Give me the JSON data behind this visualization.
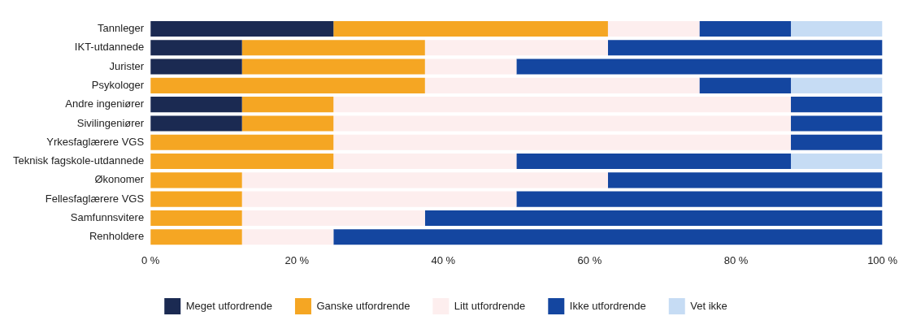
{
  "chart_data": {
    "type": "bar",
    "orientation": "horizontal",
    "stacked": true,
    "categories": [
      "Tannleger",
      "IKT-utdannede",
      "Jurister",
      "Psykologer",
      "Andre ingeniører",
      "Sivilingeniører",
      "Yrkesfaglærere VGS",
      "Teknisk fagskole-utdannede",
      "Økonomer",
      "Fellesfaglærere VGS",
      "Samfunnsvitere",
      "Renholdere"
    ],
    "series": [
      {
        "name": "Meget utfordrende",
        "color": "#1b2a52",
        "values": [
          25,
          12.5,
          12.5,
          0,
          12.5,
          12.5,
          0,
          0,
          0,
          0,
          0,
          0
        ]
      },
      {
        "name": "Ganske utfordrende",
        "color": "#f5a623",
        "values": [
          37.5,
          25,
          25,
          37.5,
          12.5,
          12.5,
          25,
          25,
          12.5,
          12.5,
          12.5,
          12.5
        ]
      },
      {
        "name": "Litt utfordrende",
        "color": "#fdeeee",
        "values": [
          12.5,
          25,
          12.5,
          37.5,
          62.5,
          62.5,
          62.5,
          25,
          50,
          37.5,
          25,
          12.5
        ]
      },
      {
        "name": "Ikke utfordrende",
        "color": "#1446a0",
        "values": [
          12.5,
          37.5,
          50,
          12.5,
          12.5,
          12.5,
          12.5,
          37.5,
          37.5,
          50,
          62.5,
          75
        ]
      },
      {
        "name": "Vet ikke",
        "color": "#c6dcf4",
        "values": [
          12.5,
          0,
          0,
          12.5,
          0,
          0,
          0,
          12.5,
          0,
          0,
          0,
          0
        ]
      }
    ],
    "xlim": [
      0,
      100
    ],
    "xticks": [
      {
        "value": 0,
        "label": "0 %"
      },
      {
        "value": 20,
        "label": "20 %"
      },
      {
        "value": 40,
        "label": "40 %"
      },
      {
        "value": 60,
        "label": "60 %"
      },
      {
        "value": 80,
        "label": "80 %"
      },
      {
        "value": 100,
        "label": "100 %"
      }
    ],
    "grid": false,
    "legend": "bottom"
  }
}
